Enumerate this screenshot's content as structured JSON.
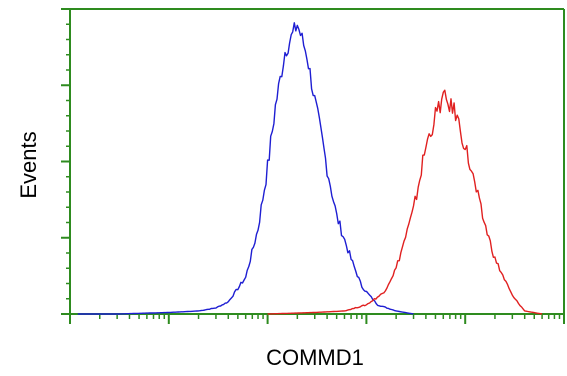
{
  "colors": {
    "axis": "#2e8b1f",
    "background": "#ffffff",
    "text": "#000000"
  },
  "chart_data": {
    "type": "line",
    "title": "",
    "xlabel": "COMMD1",
    "ylabel": "Events",
    "x_scale": "log",
    "xlim": [
      0.1,
      10000
    ],
    "ylim": [
      0,
      100
    ],
    "grid": false,
    "legend": "none",
    "series": [
      {
        "color": "#1e1ed2",
        "x": [
          0.12,
          0.3,
          1,
          2,
          3,
          4,
          6,
          8,
          10,
          12,
          15,
          20,
          25,
          30,
          40,
          50,
          70,
          90,
          130,
          200,
          300
        ],
        "y": [
          0,
          0,
          0.5,
          1,
          2,
          4,
          12,
          28,
          48,
          68,
          86,
          95,
          85,
          70,
          48,
          32,
          18,
          9,
          3,
          1,
          0
        ]
      },
      {
        "color": "#e02020",
        "x": [
          10,
          30,
          60,
          100,
          150,
          200,
          300,
          400,
          500,
          600,
          800,
          1000,
          1500,
          2000,
          3000,
          4000,
          6000
        ],
        "y": [
          0,
          0.5,
          1,
          3,
          7,
          15,
          34,
          55,
          65,
          71,
          66,
          55,
          32,
          18,
          6,
          1,
          0
        ]
      }
    ]
  }
}
